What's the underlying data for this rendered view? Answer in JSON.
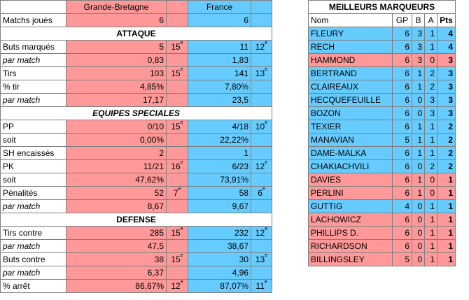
{
  "teams": {
    "home": "Grande-Bretagne",
    "away": "France"
  },
  "matchs": {
    "label": "Matchs joués",
    "home": "6",
    "away": "6"
  },
  "sections": {
    "attaque": "ATTAQUE",
    "speciales": "EQUIPES SPECIALES",
    "defense": "DEFENSE"
  },
  "rows": {
    "buts": {
      "label": "Buts marqués",
      "home": "5",
      "home_rank": "15",
      "away": "11",
      "away_rank": "12"
    },
    "buts_pm": {
      "label": "par match",
      "home": "0,83",
      "away": "1,83"
    },
    "tirs": {
      "label": "Tirs",
      "home": "103",
      "home_rank": "15",
      "away": "141",
      "away_rank": "13"
    },
    "pct_tir": {
      "label": "% tir",
      "home": "4,85%",
      "away": "7,80%"
    },
    "tirs_pm": {
      "label": "par match",
      "home": "17,17",
      "away": "23,5"
    },
    "pp": {
      "label": "PP",
      "home": "0/10",
      "home_rank": "15",
      "away": "4/18",
      "away_rank": "10"
    },
    "pp_soit": {
      "label": "soit",
      "home": "0,00%",
      "away": "22,22%"
    },
    "sh": {
      "label": "SH encaissés",
      "home": "2",
      "away": "1"
    },
    "pk": {
      "label": "PK",
      "home": "11/21",
      "home_rank": "16",
      "away": "6/23",
      "away_rank": "12"
    },
    "pk_soit": {
      "label": "soit",
      "home": "47,62%",
      "away": "73,91%"
    },
    "pen": {
      "label": "Pénalités",
      "home": "52",
      "home_rank": "7",
      "away": "58",
      "away_rank": "6"
    },
    "pen_pm": {
      "label": "par match",
      "home": "8,67",
      "away": "9,67"
    },
    "tc": {
      "label": "Tirs contre",
      "home": "285",
      "home_rank": "15",
      "away": "232",
      "away_rank": "12"
    },
    "tc_pm": {
      "label": "par match",
      "home": "47,5",
      "away": "38,67"
    },
    "bc": {
      "label": "Buts contre",
      "home": "38",
      "home_rank": "15",
      "away": "30",
      "away_rank": "13"
    },
    "bc_pm": {
      "label": "par match",
      "home": "6,37",
      "away": "4,96"
    },
    "arret": {
      "label": "% arrêt",
      "home": "86,67%",
      "home_rank": "12",
      "away": "87,07%",
      "away_rank": "11"
    }
  },
  "rank_suffix": "e",
  "scorers": {
    "title": "MEILLEURS MARQUEURS",
    "headers": {
      "nom": "Nom",
      "gp": "GP",
      "b": "B",
      "a": "A",
      "pts": "Pts"
    },
    "players": [
      {
        "nom": "FLEURY",
        "gp": "6",
        "b": "3",
        "a": "1",
        "pts": "4",
        "team": "away"
      },
      {
        "nom": "RECH",
        "gp": "6",
        "b": "3",
        "a": "1",
        "pts": "4",
        "team": "away"
      },
      {
        "nom": "HAMMOND",
        "gp": "6",
        "b": "3",
        "a": "0",
        "pts": "3",
        "team": "home"
      },
      {
        "nom": "BERTRAND",
        "gp": "6",
        "b": "1",
        "a": "2",
        "pts": "3",
        "team": "away"
      },
      {
        "nom": "CLAIREAUX",
        "gp": "6",
        "b": "1",
        "a": "2",
        "pts": "3",
        "team": "away"
      },
      {
        "nom": "HECQUEFEUILLE",
        "gp": "6",
        "b": "0",
        "a": "3",
        "pts": "3",
        "team": "away"
      },
      {
        "nom": "BOZON",
        "gp": "6",
        "b": "0",
        "a": "3",
        "pts": "3",
        "team": "away"
      },
      {
        "nom": "TEXIER",
        "gp": "6",
        "b": "1",
        "a": "1",
        "pts": "2",
        "team": "away"
      },
      {
        "nom": "MANAVIAN",
        "gp": "5",
        "b": "1",
        "a": "1",
        "pts": "2",
        "team": "away"
      },
      {
        "nom": "DAME-MALKA",
        "gp": "6",
        "b": "1",
        "a": "1",
        "pts": "2",
        "team": "away"
      },
      {
        "nom": "CHAKIACHVILI",
        "gp": "6",
        "b": "0",
        "a": "2",
        "pts": "2",
        "team": "away"
      },
      {
        "nom": "DAVIES",
        "gp": "6",
        "b": "1",
        "a": "0",
        "pts": "1",
        "team": "home"
      },
      {
        "nom": "PERLINI",
        "gp": "6",
        "b": "1",
        "a": "0",
        "pts": "1",
        "team": "home"
      },
      {
        "nom": "GUTTIG",
        "gp": "4",
        "b": "0",
        "a": "1",
        "pts": "1",
        "team": "away"
      },
      {
        "nom": "LACHOWICZ",
        "gp": "6",
        "b": "0",
        "a": "1",
        "pts": "1",
        "team": "home"
      },
      {
        "nom": "PHILLIPS D.",
        "gp": "6",
        "b": "0",
        "a": "1",
        "pts": "1",
        "team": "home"
      },
      {
        "nom": "RICHARDSON",
        "gp": "6",
        "b": "0",
        "a": "1",
        "pts": "1",
        "team": "home"
      },
      {
        "nom": "BILLINGSLEY",
        "gp": "5",
        "b": "0",
        "a": "1",
        "pts": "1",
        "team": "home"
      }
    ]
  },
  "colors": {
    "home": "#ff9999",
    "away": "#66ccff"
  }
}
